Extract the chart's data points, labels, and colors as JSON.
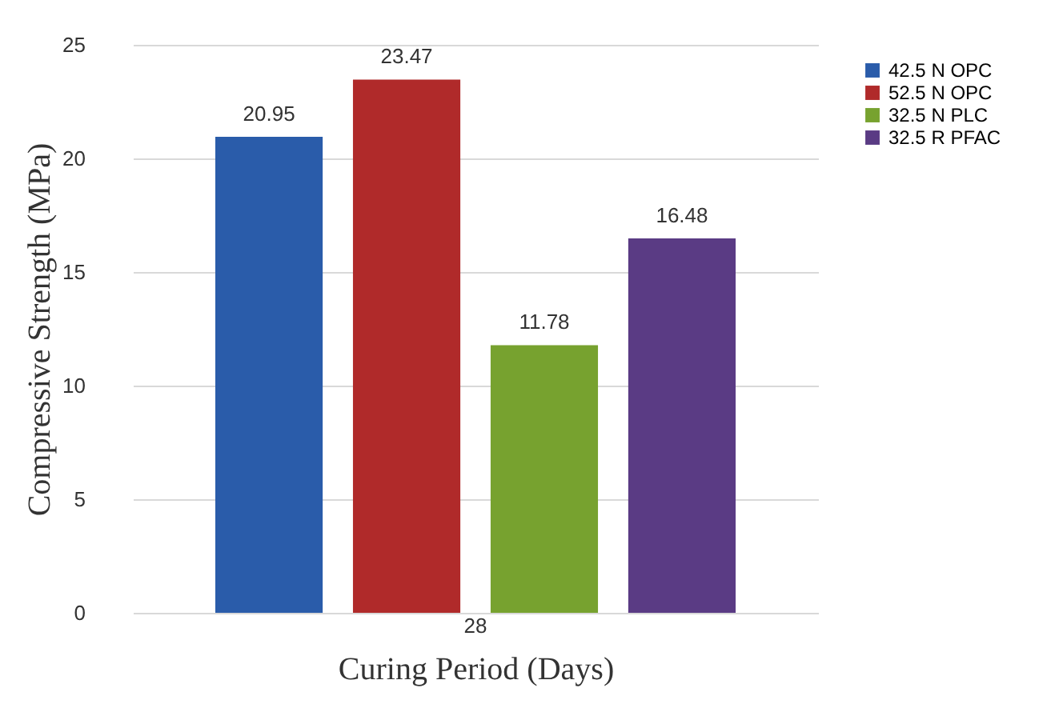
{
  "chart_data": {
    "type": "bar",
    "xlabel": "Curing Period (Days)",
    "ylabel": "Compressive Strength (MPa)",
    "categories": [
      "28"
    ],
    "series": [
      {
        "name": "42.5 N OPC",
        "color": "#2a5caa",
        "values": [
          20.95
        ]
      },
      {
        "name": "52.5 N OPC",
        "color": "#b02a2a",
        "values": [
          23.47
        ]
      },
      {
        "name": "32.5 N PLC",
        "color": "#77a22f",
        "values": [
          11.78
        ]
      },
      {
        "name": "32.5 R PFAC",
        "color": "#5a3b84",
        "values": [
          16.48
        ]
      }
    ],
    "ylim": [
      0,
      25
    ],
    "yticks": [
      0,
      5,
      10,
      15,
      20,
      25
    ],
    "grid": "y",
    "legend": "right",
    "data_labels": true
  }
}
